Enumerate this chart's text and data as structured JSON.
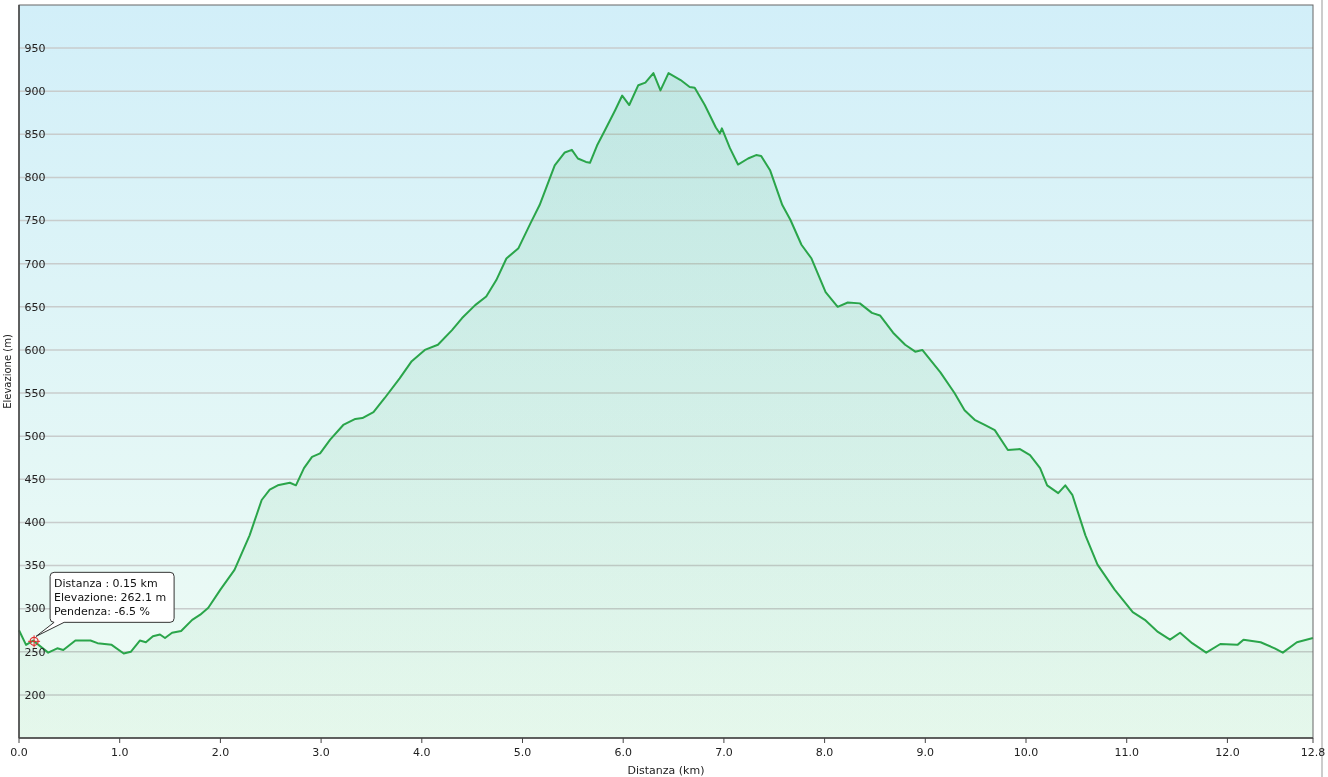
{
  "chart_data": {
    "type": "area",
    "xlabel": "Distanza  (km)",
    "ylabel": "Elevazione (m)",
    "xlim": [
      0,
      12.85
    ],
    "ylim": [
      150,
      1000
    ],
    "xticks": [
      {
        "value": 0,
        "label": "0.0"
      },
      {
        "value": 1,
        "label": "1.0"
      },
      {
        "value": 2,
        "label": "2.0"
      },
      {
        "value": 3,
        "label": "3.0"
      },
      {
        "value": 4,
        "label": "4.0"
      },
      {
        "value": 5,
        "label": "5.0"
      },
      {
        "value": 6,
        "label": "6.0"
      },
      {
        "value": 7,
        "label": "7.0"
      },
      {
        "value": 8,
        "label": "8.0"
      },
      {
        "value": 9,
        "label": "9.0"
      },
      {
        "value": 10,
        "label": "10.0"
      },
      {
        "value": 11,
        "label": "11.0"
      },
      {
        "value": 12,
        "label": "12.0"
      },
      {
        "value": 12.85,
        "label": "12.8"
      }
    ],
    "yticks": [
      200,
      250,
      300,
      350,
      400,
      450,
      500,
      550,
      600,
      650,
      700,
      750,
      800,
      850,
      900,
      950
    ],
    "grid": "y",
    "annotations": [
      {
        "text": "Distanza : 0.15 km\nElevazione: 262.1 m\nPendenza: -6.5 %",
        "x": 0.15,
        "y": 262.1
      }
    ],
    "x": [
      0,
      0.07,
      0.14,
      0.29,
      0.38,
      0.44,
      0.56,
      0.71,
      0.78,
      0.92,
      1.04,
      1.11,
      1.2,
      1.26,
      1.33,
      1.4,
      1.45,
      1.52,
      1.61,
      1.72,
      1.8,
      1.88,
      2.0,
      2.14,
      2.29,
      2.41,
      2.49,
      2.57,
      2.69,
      2.75,
      2.83,
      2.91,
      2.99,
      3.09,
      3.22,
      3.34,
      3.41,
      3.52,
      3.63,
      3.78,
      3.9,
      4.03,
      4.16,
      4.3,
      4.4,
      4.53,
      4.64,
      4.74,
      4.84,
      4.96,
      5.08,
      5.17,
      5.32,
      5.42,
      5.49,
      5.55,
      5.63,
      5.67,
      5.74,
      5.82,
      5.92,
      5.99,
      6.06,
      6.15,
      6.22,
      6.3,
      6.37,
      6.45,
      6.57,
      6.66,
      6.71,
      6.81,
      6.92,
      6.96,
      6.98,
      7.06,
      7.14,
      7.24,
      7.32,
      7.37,
      7.46,
      7.58,
      7.66,
      7.77,
      7.87,
      8.01,
      8.13,
      8.23,
      8.35,
      8.47,
      8.55,
      8.68,
      8.8,
      8.9,
      8.97,
      9.15,
      9.29,
      9.39,
      9.49,
      9.59,
      9.69,
      9.82,
      9.94,
      10.04,
      10.14,
      10.21,
      10.32,
      10.39,
      10.46,
      10.59,
      10.71,
      10.88,
      11.06,
      11.18,
      11.31,
      11.43,
      11.53,
      11.65,
      11.79,
      11.93,
      12.1,
      12.16,
      12.33,
      12.47,
      12.55,
      12.69,
      12.85
    ],
    "series": [
      {
        "color": "#2aa54a",
        "values": [
          275,
          258,
          263,
          249,
          254,
          252,
          263,
          263,
          260,
          258,
          248,
          250,
          263,
          261,
          268,
          270,
          266,
          272,
          274,
          287,
          293,
          301,
          322,
          345,
          385,
          426,
          438,
          443,
          446,
          443,
          463,
          476,
          480,
          496,
          513,
          520,
          521,
          528,
          544,
          567,
          587,
          600,
          606,
          623,
          637,
          652,
          662,
          681,
          706,
          718,
          747,
          768,
          814,
          829,
          832,
          822,
          818,
          817,
          837,
          855,
          878,
          895,
          884,
          907,
          910,
          921,
          901,
          921,
          913,
          905,
          904,
          884,
          858,
          851,
          857,
          834,
          815,
          822,
          826,
          825,
          808,
          768,
          751,
          722,
          706,
          667,
          650,
          655,
          654,
          643,
          640,
          620,
          606,
          598,
          600,
          574,
          550,
          530,
          519,
          513,
          507,
          484,
          485,
          478,
          463,
          443,
          434,
          443,
          432,
          385,
          351,
          322,
          296,
          287,
          273,
          264,
          272,
          260,
          249,
          259,
          258,
          264,
          261,
          254,
          249,
          261,
          266
        ]
      }
    ]
  }
}
